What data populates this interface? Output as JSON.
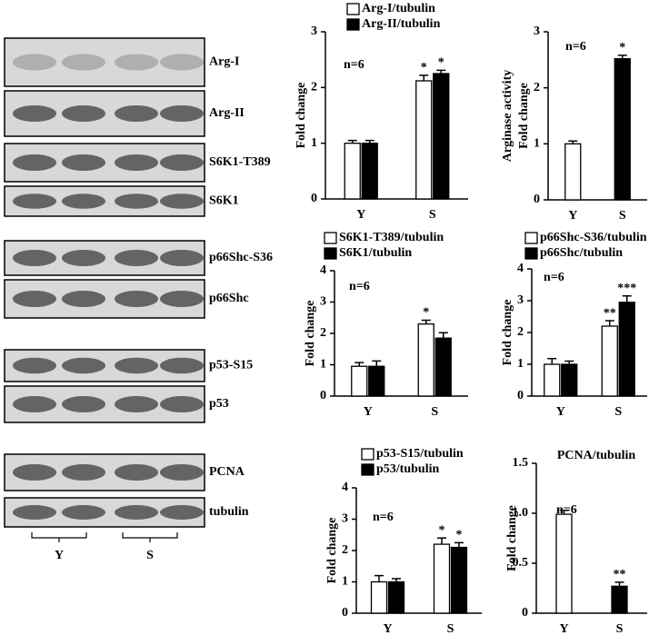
{
  "blots": {
    "labels": [
      "Arg-I",
      "Arg-II",
      "S6K1-T389",
      "S6K1",
      "p66Shc-S36",
      "p66Shc",
      "p53-S15",
      "p53",
      "PCNA",
      "tubulin"
    ],
    "groups": [
      "Y",
      "S"
    ]
  },
  "chart_data": [
    {
      "type": "bar",
      "y_label": "Fold change",
      "annotation": "n=6",
      "categories": [
        "Y",
        "S"
      ],
      "ylim": [
        0,
        3
      ],
      "yticks": [
        0,
        1,
        2,
        3
      ],
      "series": [
        {
          "name": "Arg-I/tubulin",
          "color": "#ffffff",
          "values": [
            1.0,
            2.12
          ],
          "errors": [
            0.05,
            0.1
          ],
          "significance": [
            null,
            "*"
          ]
        },
        {
          "name": "Arg-II/tubulin",
          "color": "#000000",
          "values": [
            1.0,
            2.25
          ],
          "errors": [
            0.05,
            0.06
          ],
          "significance": [
            null,
            "*"
          ]
        }
      ]
    },
    {
      "type": "bar",
      "y_label": [
        "Arginase activity",
        "Fold change"
      ],
      "annotation": "n=6",
      "categories": [
        "Y",
        "S"
      ],
      "ylim": [
        0,
        3
      ],
      "yticks": [
        0,
        1,
        2,
        3
      ],
      "series": [
        {
          "colors": [
            "#ffffff",
            "#000000"
          ],
          "values": [
            1.0,
            2.52
          ],
          "errors": [
            0.05,
            0.06
          ],
          "significance": [
            null,
            "*"
          ]
        }
      ]
    },
    {
      "type": "bar",
      "y_label": "Fold change",
      "annotation": "n=6",
      "categories": [
        "Y",
        "S"
      ],
      "ylim": [
        0,
        4
      ],
      "yticks": [
        0,
        1,
        2,
        3,
        4
      ],
      "series": [
        {
          "name": "S6K1-T389/tubulin",
          "color": "#ffffff",
          "values": [
            0.95,
            2.3
          ],
          "errors": [
            0.12,
            0.12
          ],
          "significance": [
            null,
            "*"
          ]
        },
        {
          "name": "S6K1/tubulin",
          "color": "#000000",
          "values": [
            0.95,
            1.85
          ],
          "errors": [
            0.17,
            0.17
          ]
        }
      ]
    },
    {
      "type": "bar",
      "y_label": "Fold change",
      "annotation": "n=6",
      "categories": [
        "Y",
        "S"
      ],
      "ylim": [
        0,
        4
      ],
      "yticks": [
        0,
        1,
        2,
        3,
        4
      ],
      "series": [
        {
          "name": "p66Shc-S36/tubulin",
          "color": "#ffffff",
          "values": [
            1.0,
            2.2
          ],
          "errors": [
            0.18,
            0.17
          ],
          "significance": [
            null,
            "**"
          ]
        },
        {
          "name": "p66Shc/tubulin",
          "color": "#000000",
          "values": [
            1.0,
            2.95
          ],
          "errors": [
            0.1,
            0.2
          ],
          "significance": [
            null,
            "***"
          ]
        }
      ]
    },
    {
      "type": "bar",
      "y_label": "Fold change",
      "annotation": "n=6",
      "categories": [
        "Y",
        "S"
      ],
      "ylim": [
        0,
        4
      ],
      "yticks": [
        0,
        1,
        2,
        3,
        4
      ],
      "series": [
        {
          "name": "p53-S15/tubulin",
          "color": "#ffffff",
          "values": [
            1.0,
            2.2
          ],
          "errors": [
            0.2,
            0.2
          ],
          "significance": [
            null,
            "*"
          ]
        },
        {
          "name": "p53/tubulin",
          "color": "#000000",
          "values": [
            1.0,
            2.1
          ],
          "errors": [
            0.1,
            0.15
          ],
          "significance": [
            null,
            "*"
          ]
        }
      ]
    },
    {
      "type": "bar",
      "title": "PCNA/tubulin",
      "y_label": "Fold change",
      "annotation": "n=6",
      "categories": [
        "Y",
        "S"
      ],
      "ylim": [
        0,
        1.5
      ],
      "yticks": [
        0,
        0.5,
        {
          "value": 1.0,
          "label": "1.0"
        },
        1.5
      ],
      "series": [
        {
          "colors": [
            "#ffffff",
            "#000000"
          ],
          "values": [
            0.99,
            0.27
          ],
          "errors": [
            0.04,
            0.04
          ],
          "significance": [
            null,
            "**"
          ]
        }
      ]
    }
  ]
}
